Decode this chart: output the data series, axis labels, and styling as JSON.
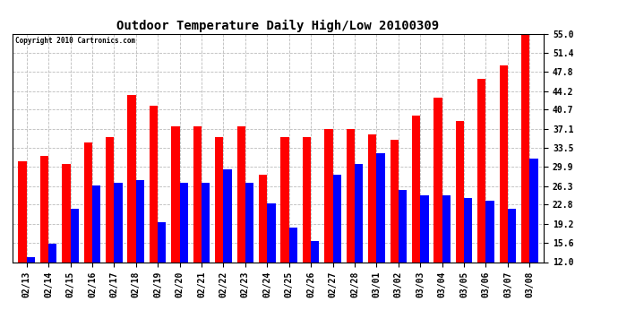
{
  "title": "Outdoor Temperature Daily High/Low 20100309",
  "copyright": "Copyright 2010 Cartronics.com",
  "dates": [
    "02/13",
    "02/14",
    "02/15",
    "02/16",
    "02/17",
    "02/18",
    "02/19",
    "02/20",
    "02/21",
    "02/22",
    "02/23",
    "02/24",
    "02/25",
    "02/26",
    "02/27",
    "02/28",
    "03/01",
    "03/02",
    "03/03",
    "03/04",
    "03/05",
    "03/06",
    "03/07",
    "03/08"
  ],
  "highs": [
    31.0,
    32.0,
    30.5,
    34.5,
    35.5,
    43.5,
    41.5,
    37.5,
    37.5,
    35.5,
    37.5,
    28.5,
    35.5,
    35.5,
    37.0,
    37.0,
    36.0,
    35.0,
    39.5,
    43.0,
    38.5,
    46.5,
    49.0,
    55.0
  ],
  "lows": [
    13.0,
    15.5,
    22.0,
    26.5,
    27.0,
    27.5,
    19.5,
    27.0,
    27.0,
    29.5,
    27.0,
    23.0,
    18.5,
    16.0,
    28.5,
    30.5,
    32.5,
    25.5,
    24.5,
    24.5,
    24.0,
    23.5,
    22.0,
    31.5
  ],
  "high_color": "#ff0000",
  "low_color": "#0000ff",
  "bg_color": "#ffffff",
  "grid_color": "#bbbbbb",
  "ylim_min": 12.0,
  "ylim_max": 55.0,
  "yticks": [
    12.0,
    15.6,
    19.2,
    22.8,
    26.3,
    29.9,
    33.5,
    37.1,
    40.7,
    44.2,
    47.8,
    51.4,
    55.0
  ],
  "title_fontsize": 10,
  "tick_fontsize": 7,
  "bar_width": 0.38
}
